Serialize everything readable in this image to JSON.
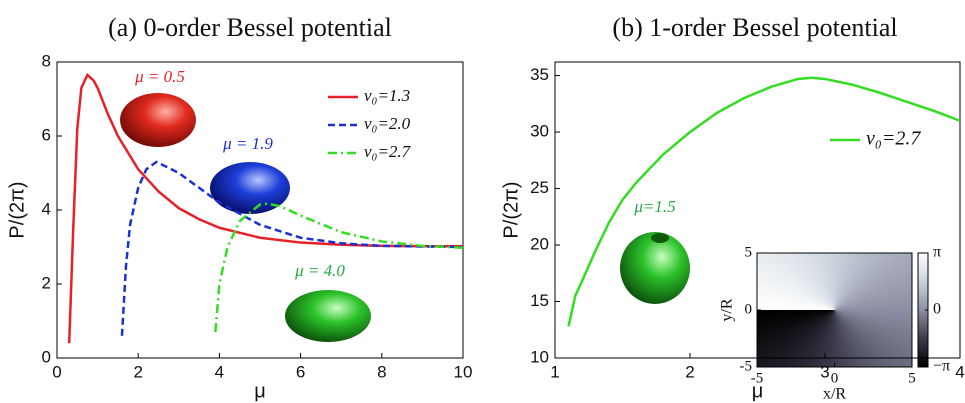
{
  "chart_data": [
    {
      "type": "line",
      "title": "(a) 0-order Bessel potential",
      "xlabel": "μ",
      "ylabel": "P/(2π)",
      "xlim": [
        0,
        10
      ],
      "ylim": [
        0,
        8
      ],
      "xticks": [
        0,
        2,
        4,
        6,
        8,
        10
      ],
      "yticks": [
        0,
        2,
        4,
        6,
        8
      ],
      "legend": "upper right",
      "series": [
        {
          "name": "ν₀=1.3",
          "color": "#e8202a",
          "dash": "solid",
          "x": [
            0.3,
            0.4,
            0.5,
            0.6,
            0.75,
            0.9,
            1.0,
            1.25,
            1.5,
            2,
            2.5,
            3,
            3.5,
            4,
            5,
            6,
            7,
            8,
            9,
            10
          ],
          "values": [
            0.4,
            3.5,
            6.2,
            7.3,
            7.65,
            7.5,
            7.3,
            6.6,
            6.0,
            5.1,
            4.5,
            4.05,
            3.75,
            3.52,
            3.25,
            3.12,
            3.06,
            3.03,
            3.02,
            3.02
          ]
        },
        {
          "name": "ν₀=2.0",
          "color": "#1a2fd6",
          "dash": "dashed",
          "x": [
            1.6,
            1.7,
            1.8,
            2.0,
            2.2,
            2.45,
            3,
            3.5,
            4,
            5,
            6,
            7,
            8,
            10
          ],
          "values": [
            0.6,
            2.5,
            3.6,
            4.6,
            5.1,
            5.3,
            5.0,
            4.6,
            4.2,
            3.6,
            3.25,
            3.1,
            3.03,
            3.0
          ]
        },
        {
          "name": "ν₀=2.7",
          "color": "#33dd22",
          "dash": "dashdot",
          "x": [
            3.9,
            4.0,
            4.2,
            4.5,
            5,
            5.2,
            5.5,
            6,
            7,
            8,
            9,
            10
          ],
          "values": [
            0.7,
            2.0,
            3.0,
            3.7,
            4.15,
            4.17,
            4.1,
            3.85,
            3.4,
            3.15,
            3.03,
            2.98
          ]
        }
      ],
      "annotations": [
        {
          "text": "μ = 0.5",
          "color": "#e8202a"
        },
        {
          "text": "μ = 1.9",
          "color": "#1a2fd6"
        },
        {
          "text": "μ = 4.0",
          "color": "#22aa44"
        }
      ]
    },
    {
      "type": "line",
      "title": "(b) 1-order Bessel potential",
      "xlabel": "μ",
      "ylabel": "P/(2π)",
      "xlim": [
        1,
        4
      ],
      "ylim": [
        10,
        36.2
      ],
      "xticks": [
        1,
        2,
        3,
        4
      ],
      "yticks": [
        10,
        15,
        20,
        25,
        30,
        35
      ],
      "legend": "right",
      "series": [
        {
          "name": "ν₀=2.7",
          "color": "#33dd22",
          "dash": "solid",
          "x": [
            1.1,
            1.15,
            1.2,
            1.3,
            1.4,
            1.5,
            1.6,
            1.8,
            2.0,
            2.2,
            2.4,
            2.6,
            2.8,
            2.9,
            3.0,
            3.2,
            3.4,
            3.6,
            3.8,
            4.0
          ],
          "values": [
            12.8,
            15.5,
            16.8,
            19.5,
            22,
            24,
            25.5,
            28,
            30,
            31.7,
            33,
            34,
            34.7,
            34.8,
            34.7,
            34.2,
            33.5,
            32.7,
            31.9,
            31
          ]
        }
      ],
      "annotations": [
        {
          "text": "μ=1.5",
          "color": "#22aa44"
        }
      ]
    },
    {
      "type": "heatmap",
      "xlabel": "x/R",
      "ylabel": "y/R",
      "xlim": [
        -5,
        5
      ],
      "ylim": [
        -5,
        5
      ],
      "xticks": [
        -5,
        0,
        5
      ],
      "yticks": [
        -5,
        0,
        5
      ],
      "clim": [
        -3.14159,
        3.14159
      ],
      "cticks": [
        {
          "value": 3.14159,
          "label": "π"
        },
        0,
        {
          "value": -3.14159,
          "label": "−π"
        }
      ]
    }
  ]
}
